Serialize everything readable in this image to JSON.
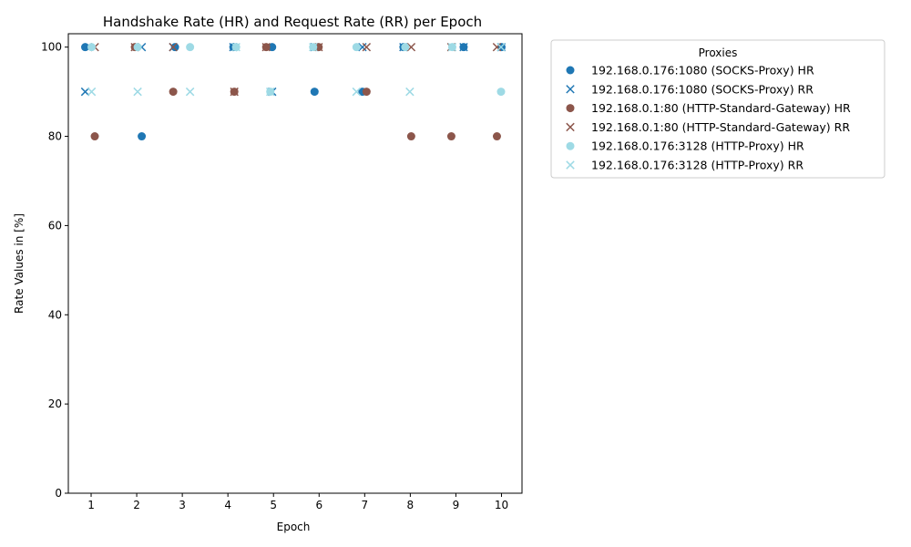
{
  "chart_data": {
    "type": "scatter",
    "title": "Handshake Rate (HR) and Request Rate (RR) per Epoch",
    "xlabel": "Epoch",
    "ylabel": "Rate Values in [%]",
    "x_ticks": [
      1,
      2,
      3,
      4,
      5,
      6,
      7,
      8,
      9,
      10
    ],
    "y_ticks": [
      0,
      20,
      40,
      60,
      80,
      100
    ],
    "xlim": [
      0.5,
      10.45
    ],
    "ylim": [
      0,
      103
    ],
    "grid": false,
    "legend": {
      "title": "Proxies",
      "placement": "outside-right"
    },
    "series": [
      {
        "name": "192.168.0.176:1080 (SOCKS-Proxy) HR",
        "marker": "circle",
        "color": "#1f77b4",
        "points": [
          [
            0.87,
            100
          ],
          [
            2.11,
            80
          ],
          [
            2.84,
            100
          ],
          [
            4.12,
            100
          ],
          [
            4.97,
            100
          ],
          [
            5.9,
            90
          ],
          [
            6.95,
            90
          ],
          [
            7.85,
            100
          ],
          [
            9.17,
            100
          ],
          [
            10.0,
            100
          ]
        ]
      },
      {
        "name": "192.168.0.176:1080 (SOCKS-Proxy) RR",
        "marker": "x",
        "color": "#1f77b4",
        "points": [
          [
            0.87,
            90
          ],
          [
            2.11,
            100
          ],
          [
            2.8,
            100
          ],
          [
            4.12,
            100
          ],
          [
            4.97,
            90
          ],
          [
            5.9,
            100
          ],
          [
            6.95,
            100
          ],
          [
            7.85,
            100
          ],
          [
            9.17,
            100
          ],
          [
            10.0,
            100
          ]
        ]
      },
      {
        "name": "192.168.0.1:80 (HTTP-Standard-Gateway) HR",
        "marker": "circle",
        "color": "#8c564b",
        "points": [
          [
            1.08,
            80
          ],
          [
            1.96,
            100
          ],
          [
            2.8,
            90
          ],
          [
            4.14,
            90
          ],
          [
            4.84,
            100
          ],
          [
            5.99,
            100
          ],
          [
            7.04,
            90
          ],
          [
            8.02,
            80
          ],
          [
            8.9,
            80
          ],
          [
            9.9,
            80
          ]
        ]
      },
      {
        "name": "192.168.0.1:80 (HTTP-Standard-Gateway) RR",
        "marker": "x",
        "color": "#8c564b",
        "points": [
          [
            1.08,
            100
          ],
          [
            1.96,
            100
          ],
          [
            2.8,
            100
          ],
          [
            4.14,
            90
          ],
          [
            4.84,
            100
          ],
          [
            5.99,
            100
          ],
          [
            7.04,
            100
          ],
          [
            8.02,
            100
          ],
          [
            8.9,
            100
          ],
          [
            9.9,
            100
          ]
        ]
      },
      {
        "name": "192.168.0.176:3128 (HTTP-Proxy) HR",
        "marker": "circle",
        "color": "#9edae5",
        "points": [
          [
            1.01,
            100
          ],
          [
            2.02,
            100
          ],
          [
            3.17,
            100
          ],
          [
            4.18,
            100
          ],
          [
            4.93,
            90
          ],
          [
            5.87,
            100
          ],
          [
            6.82,
            100
          ],
          [
            7.89,
            100
          ],
          [
            8.92,
            100
          ],
          [
            9.99,
            90
          ]
        ]
      },
      {
        "name": "192.168.0.176:3128 (HTTP-Proxy) RR",
        "marker": "x",
        "color": "#9edae5",
        "points": [
          [
            1.01,
            90
          ],
          [
            2.02,
            90
          ],
          [
            3.17,
            90
          ],
          [
            4.18,
            100
          ],
          [
            4.93,
            90
          ],
          [
            5.87,
            100
          ],
          [
            6.82,
            90
          ],
          [
            7.99,
            90
          ],
          [
            8.92,
            100
          ],
          [
            9.99,
            100
          ]
        ]
      }
    ]
  }
}
